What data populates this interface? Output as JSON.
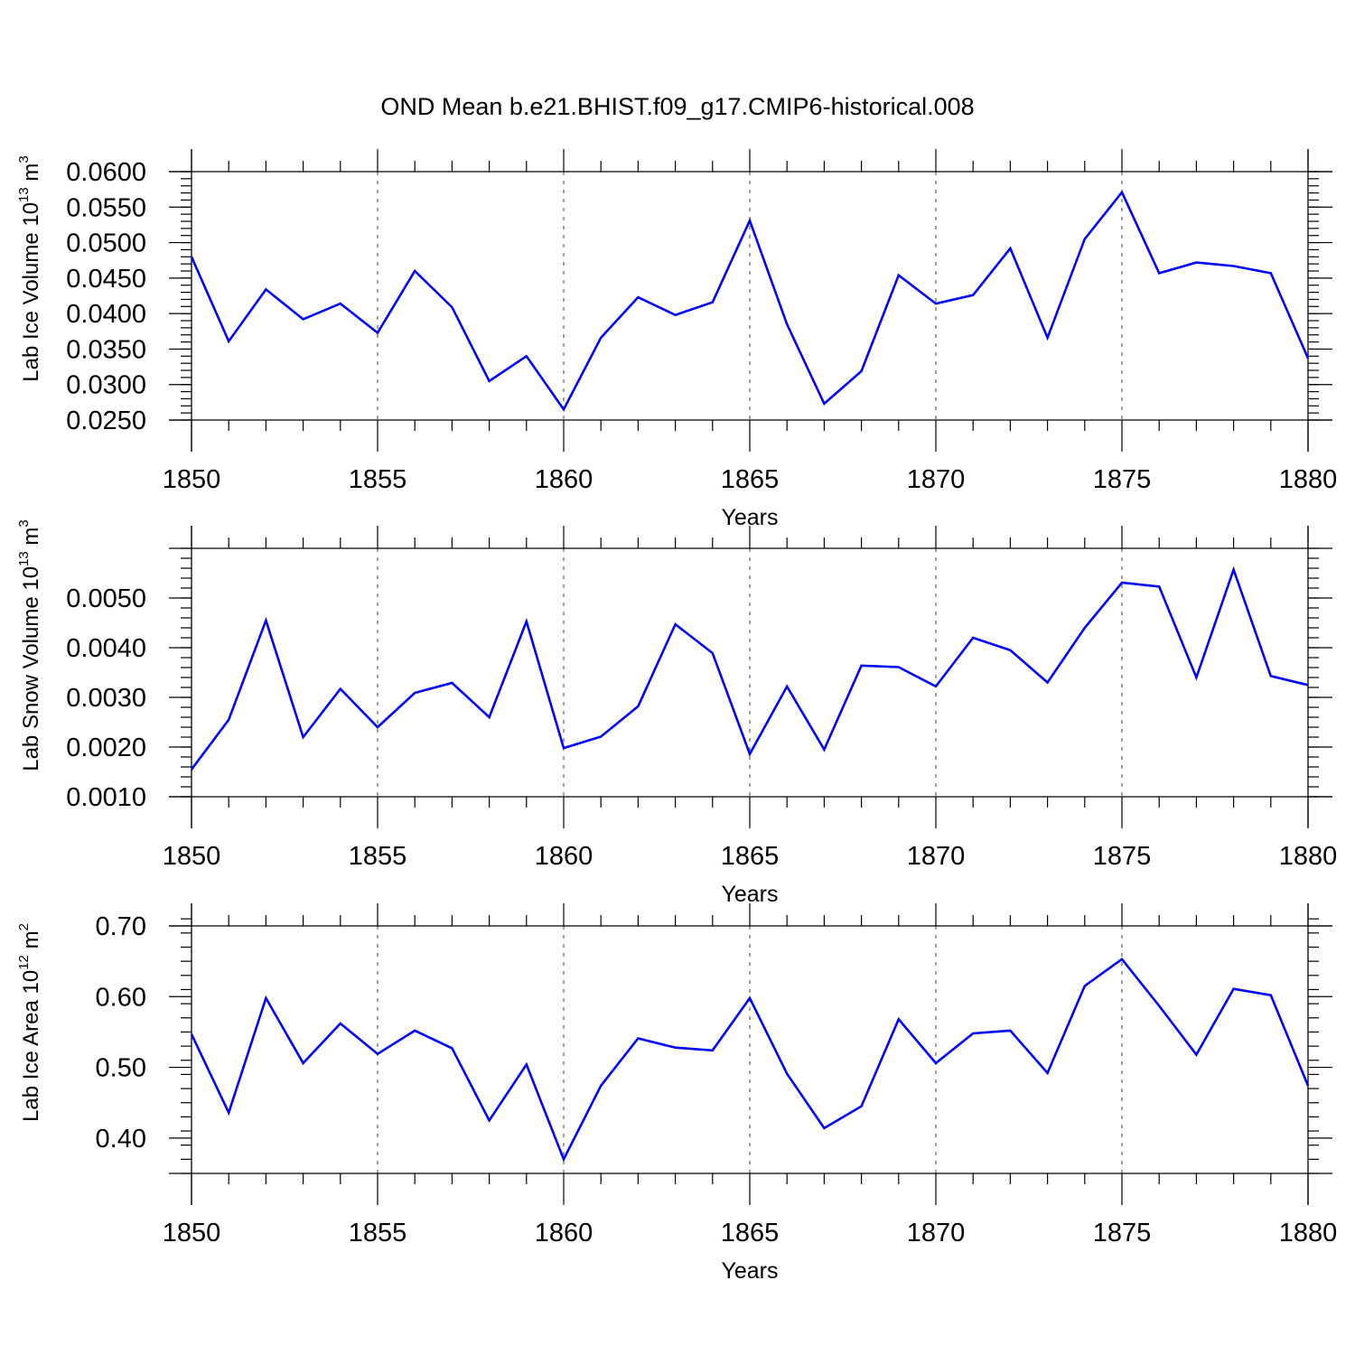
{
  "title": "OND Mean b.e21.BHIST.f09_g17.CMIP6-historical.008",
  "chart_data": [
    {
      "type": "line",
      "ylabel": "Lab Ice Volume 10",
      "ylabel_exp": "13",
      "ylabel_unit": " m",
      "ylabel_unit_exp": "3",
      "xlabel": "Years",
      "xlim": [
        1850,
        1880
      ],
      "ylim": [
        0.025,
        0.06
      ],
      "x_ticks": [
        1850,
        1855,
        1860,
        1865,
        1870,
        1875,
        1880
      ],
      "x_tick_labels": [
        "1850",
        "1855",
        "1860",
        "1865",
        "1870",
        "1875",
        "1880"
      ],
      "y_ticks": [
        0.025,
        0.03,
        0.035,
        0.04,
        0.045,
        0.05,
        0.055,
        0.06
      ],
      "y_tick_labels": [
        "0.0250",
        "0.0300",
        "0.0350",
        "0.0400",
        "0.0450",
        "0.0500",
        "0.0550",
        "0.0600"
      ],
      "y_minor_step": 0.001,
      "grid_x": true,
      "series_color": "#0000ff",
      "x": [
        1850,
        1851,
        1852,
        1853,
        1854,
        1855,
        1856,
        1857,
        1858,
        1859,
        1860,
        1861,
        1862,
        1863,
        1864,
        1865,
        1866,
        1867,
        1868,
        1869,
        1870,
        1871,
        1872,
        1873,
        1874,
        1875,
        1876,
        1877,
        1878,
        1879,
        1880
      ],
      "y": [
        0.048,
        0.0361,
        0.0434,
        0.0392,
        0.0414,
        0.0373,
        0.046,
        0.0409,
        0.0305,
        0.034,
        0.0265,
        0.0366,
        0.0423,
        0.0398,
        0.0416,
        0.0531,
        0.0385,
        0.0273,
        0.0319,
        0.0454,
        0.0414,
        0.0426,
        0.0492,
        0.0366,
        0.0505,
        0.0571,
        0.0457,
        0.0472,
        0.0467,
        0.0457,
        0.0337
      ]
    },
    {
      "type": "line",
      "ylabel": "Lab Snow Volume 10",
      "ylabel_exp": "13",
      "ylabel_unit": " m",
      "ylabel_unit_exp": "3",
      "xlabel": "Years",
      "xlim": [
        1850,
        1880
      ],
      "ylim": [
        0.001,
        0.006
      ],
      "x_ticks": [
        1850,
        1855,
        1860,
        1865,
        1870,
        1875,
        1880
      ],
      "x_tick_labels": [
        "1850",
        "1855",
        "1860",
        "1865",
        "1870",
        "1875",
        "1880"
      ],
      "y_ticks": [
        0.001,
        0.002,
        0.003,
        0.004,
        0.005
      ],
      "y_tick_labels": [
        "0.0010",
        "0.0020",
        "0.0030",
        "0.0040",
        "0.0050"
      ],
      "y_minor_step": 0.0002,
      "grid_x": true,
      "series_color": "#0000ff",
      "x": [
        1850,
        1851,
        1852,
        1853,
        1854,
        1855,
        1856,
        1857,
        1858,
        1859,
        1860,
        1861,
        1862,
        1863,
        1864,
        1865,
        1866,
        1867,
        1868,
        1869,
        1870,
        1871,
        1872,
        1873,
        1874,
        1875,
        1876,
        1877,
        1878,
        1879,
        1880
      ],
      "y": [
        0.00155,
        0.00255,
        0.00455,
        0.0022,
        0.00317,
        0.0024,
        0.00309,
        0.00329,
        0.0026,
        0.00453,
        0.00198,
        0.00221,
        0.00282,
        0.00447,
        0.00389,
        0.00186,
        0.00322,
        0.00195,
        0.00364,
        0.00361,
        0.00322,
        0.0042,
        0.00395,
        0.0033,
        0.0044,
        0.00531,
        0.00523,
        0.0034,
        0.00557,
        0.00343,
        0.00325
      ]
    },
    {
      "type": "line",
      "ylabel": "Lab Ice Area 10",
      "ylabel_exp": "12",
      "ylabel_unit": " m",
      "ylabel_unit_exp": "2",
      "xlabel": "Years",
      "xlim": [
        1850,
        1880
      ],
      "ylim": [
        0.35,
        0.7
      ],
      "x_ticks": [
        1850,
        1855,
        1860,
        1865,
        1870,
        1875,
        1880
      ],
      "x_tick_labels": [
        "1850",
        "1855",
        "1860",
        "1865",
        "1870",
        "1875",
        "1880"
      ],
      "y_ticks": [
        0.4,
        0.5,
        0.6,
        0.7
      ],
      "y_tick_labels": [
        "0.40",
        "0.50",
        "0.60",
        "0.70"
      ],
      "y_minor_step": 0.02,
      "grid_x": true,
      "series_color": "#0000ff",
      "x": [
        1850,
        1851,
        1852,
        1853,
        1854,
        1855,
        1856,
        1857,
        1858,
        1859,
        1860,
        1861,
        1862,
        1863,
        1864,
        1865,
        1866,
        1867,
        1868,
        1869,
        1870,
        1871,
        1872,
        1873,
        1874,
        1875,
        1876,
        1877,
        1878,
        1879,
        1880
      ],
      "y": [
        0.547,
        0.436,
        0.598,
        0.506,
        0.562,
        0.519,
        0.552,
        0.527,
        0.425,
        0.504,
        0.37,
        0.474,
        0.541,
        0.528,
        0.524,
        0.598,
        0.491,
        0.414,
        0.445,
        0.568,
        0.506,
        0.548,
        0.552,
        0.492,
        0.615,
        0.653,
        0.587,
        0.518,
        0.611,
        0.602,
        0.474
      ]
    }
  ]
}
